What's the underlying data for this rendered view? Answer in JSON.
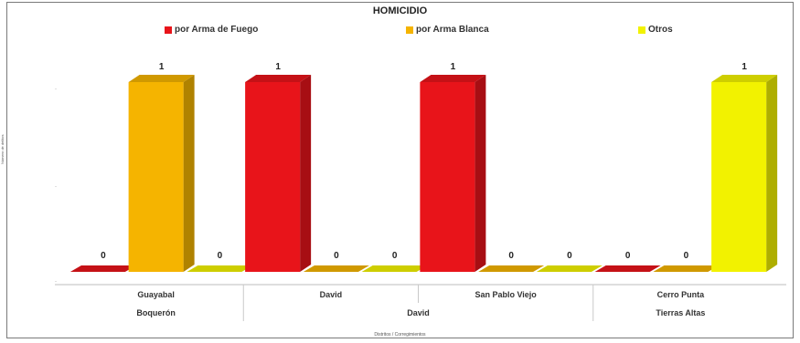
{
  "chart_data": {
    "type": "bar",
    "title": "HOMICIDIO",
    "xlabel": "Distritos / Corregimientos",
    "ylabel": "Número de delitos",
    "ylim": [
      0,
      1
    ],
    "legend_position": "top",
    "categories": [
      "Guayabal",
      "David",
      "San Pablo Viejo",
      "Cerro Punta"
    ],
    "groups": [
      {
        "name": "Boquerón",
        "categories": [
          "Guayabal"
        ]
      },
      {
        "name": "David",
        "categories": [
          "David",
          "San Pablo Viejo"
        ]
      },
      {
        "name": "Tierras Altas",
        "categories": [
          "Cerro Punta"
        ]
      }
    ],
    "series": [
      {
        "name": "por Arma de Fuego",
        "color": "#e8141a",
        "values": [
          0,
          1,
          1,
          0
        ]
      },
      {
        "name": "por Arma Blanca",
        "color": "#f5b400",
        "values": [
          1,
          0,
          0,
          0
        ]
      },
      {
        "name": "Otros",
        "color": "#f2f200",
        "values": [
          0,
          0,
          0,
          1
        ]
      }
    ]
  }
}
